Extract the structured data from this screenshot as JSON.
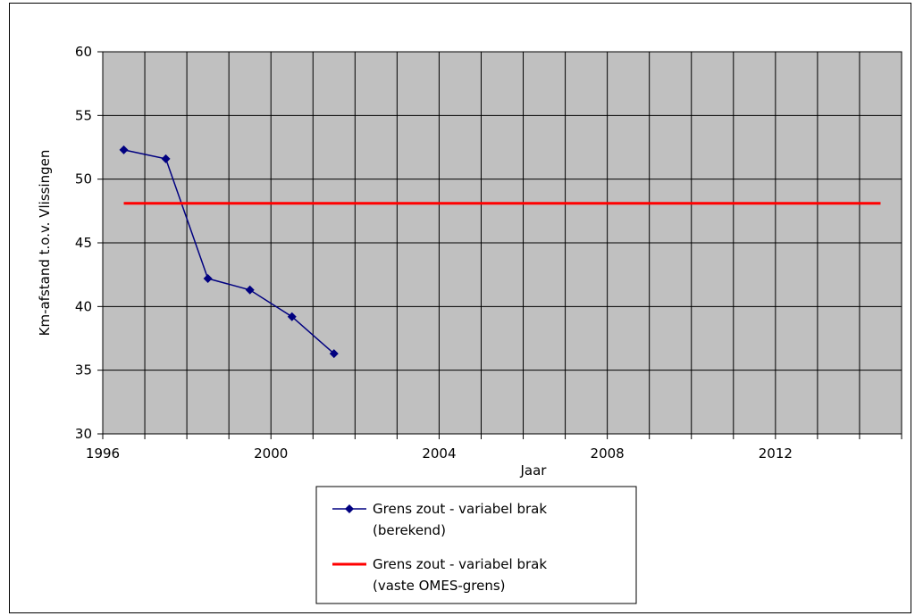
{
  "chart_data": {
    "type": "line",
    "xlabel": "Jaar",
    "ylabel": "Km-afstand t.o.v. Vlissingen",
    "xlim": [
      1996,
      2014
    ],
    "ylim": [
      30,
      60
    ],
    "x_ticks": [
      "1996",
      "2000",
      "2004",
      "2008",
      "2012"
    ],
    "y_ticks": [
      "30",
      "35",
      "40",
      "45",
      "50",
      "55",
      "60"
    ],
    "grid": true,
    "plot_background": "#c0c0c0",
    "legend_position": "bottom",
    "series": [
      {
        "name": "Grens zout - variabel brak (berekend)",
        "legend_lines": [
          "Grens zout - variabel brak",
          "(berekend)"
        ],
        "color": "#000080",
        "marker": "diamond",
        "points": [
          {
            "x": 1996.5,
            "y": 52.3
          },
          {
            "x": 1997.5,
            "y": 51.6
          },
          {
            "x": 1998.5,
            "y": 42.2
          },
          {
            "x": 1999.5,
            "y": 41.3
          },
          {
            "x": 2000.5,
            "y": 39.2
          },
          {
            "x": 2001.5,
            "y": 36.3
          }
        ]
      },
      {
        "name": "Grens zout - variabel brak (vaste OMES-grens)",
        "legend_lines": [
          "Grens zout - variabel brak",
          "(vaste OMES-grens)"
        ],
        "color": "#ff0000",
        "marker": "none",
        "points": [
          {
            "x": 1996.5,
            "y": 48.1
          },
          {
            "x": 2014.5,
            "y": 48.1
          }
        ]
      }
    ]
  }
}
